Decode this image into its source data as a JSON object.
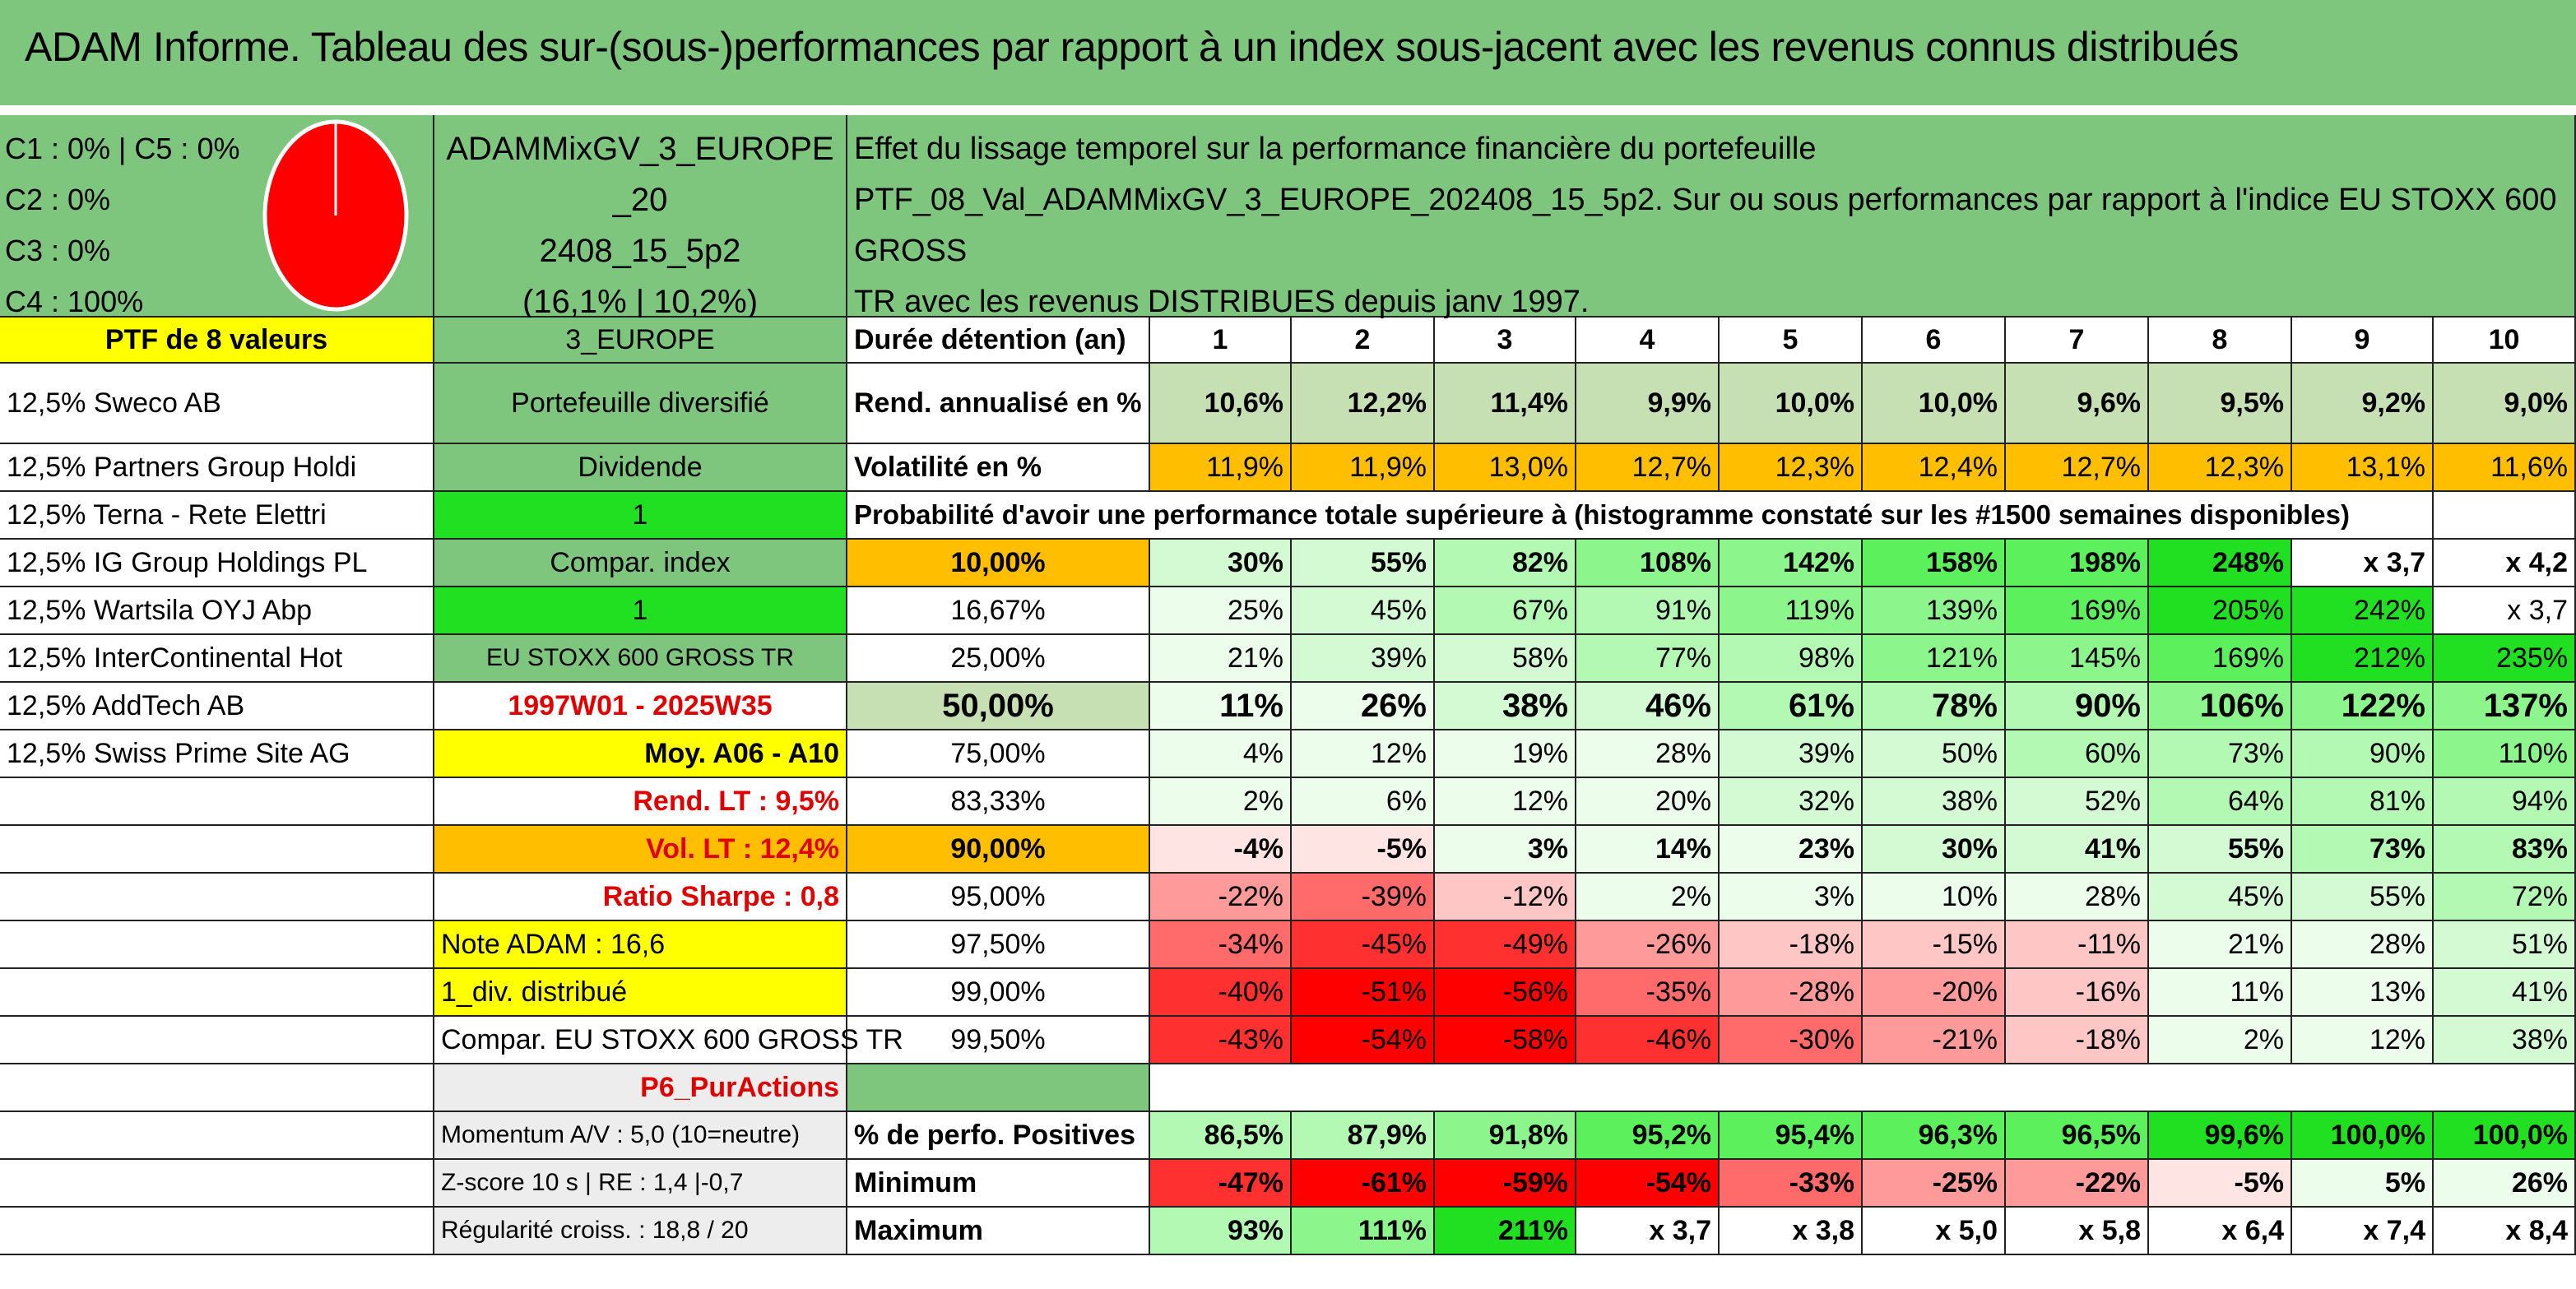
{
  "title": "ADAM Informe. Tableau des sur-(sous-)performances par rapport à un index sous-jacent avec les revenus connus distribués",
  "composition": [
    "C1 : 0% | C5 : 0%",
    "C2 : 0%",
    "C3 : 0%",
    "C4 : 100%"
  ],
  "pie": {
    "fill": "#ff0000",
    "stroke": "#ffffff"
  },
  "portfolio_name_lines": [
    "ADAMMixGV_3_EUROPE_20",
    "2408_15_5p2",
    "(16,1% | 10,2%)"
  ],
  "description_lines": [
    "Effet du lissage temporel sur la performance financière du portefeuille",
    "PTF_08_Val_ADAMMixGV_3_EUROPE_202408_15_5p2. Sur ou sous performances par rapport à l'indice EU STOXX 600 GROSS",
    "TR avec les revenus DISTRIBUES depuis janv 1997."
  ],
  "left_col": [
    "PTF de 8 valeurs",
    "12,5% Sweco AB",
    "12,5% Partners Group Holdi",
    "12,5% Terna - Rete Elettri",
    "12,5% IG Group Holdings PL",
    "12,5% Wartsila OYJ Abp",
    "12,5% InterContinental Hot",
    "12,5% AddTech AB",
    "12,5% Swiss Prime Site AG",
    "",
    "",
    "",
    "",
    "",
    "",
    "",
    "",
    "",
    ""
  ],
  "mid_col": [
    "3_EUROPE",
    "Portefeuille diversifié",
    "Dividende",
    "1",
    "Compar. index",
    "1",
    "EU STOXX 600 GROSS TR",
    "1997W01 - 2025W35",
    "Moy. A06 - A10",
    "Rend. LT : 9,5%",
    "Vol. LT : 12,4%",
    "Ratio Sharpe : 0,8",
    "Note ADAM : 16,6",
    "1_div. distribué",
    "Compar. EU STOXX 600 GROSS TR",
    "P6_PurActions",
    "Momentum A/V : 5,0 (10=neutre)",
    "Z-score 10 s | RE : 1,4 |-0,7",
    "Régularité croiss. : 18,8 / 20"
  ],
  "durations_header": "Durée détention (an)",
  "years": [
    "1",
    "2",
    "3",
    "4",
    "5",
    "6",
    "7",
    "8",
    "9",
    "10"
  ],
  "rend_label": "Rend. annualisé en %",
  "rend": [
    "10,6%",
    "12,2%",
    "11,4%",
    "9,9%",
    "10,0%",
    "10,0%",
    "9,6%",
    "9,5%",
    "9,2%",
    "9,0%"
  ],
  "vol_label": "Volatilité en %",
  "vol": [
    "11,9%",
    "11,9%",
    "13,0%",
    "12,7%",
    "12,3%",
    "12,4%",
    "12,7%",
    "12,3%",
    "13,1%",
    "11,6%"
  ],
  "prob_title": "Probabilité d'avoir une performance totale supérieure à (histogramme constaté sur les #1500 semaines disponibles)",
  "prob_rows": [
    {
      "p": "10,00%",
      "v": [
        "30%",
        "55%",
        "82%",
        "108%",
        "142%",
        "158%",
        "198%",
        "248%",
        "x 3,7",
        "x 4,2"
      ]
    },
    {
      "p": "16,67%",
      "v": [
        "25%",
        "45%",
        "67%",
        "91%",
        "119%",
        "139%",
        "169%",
        "205%",
        "242%",
        "x 3,7"
      ]
    },
    {
      "p": "25,00%",
      "v": [
        "21%",
        "39%",
        "58%",
        "77%",
        "98%",
        "121%",
        "145%",
        "169%",
        "212%",
        "235%"
      ]
    },
    {
      "p": "50,00%",
      "v": [
        "11%",
        "26%",
        "38%",
        "46%",
        "61%",
        "78%",
        "90%",
        "106%",
        "122%",
        "137%"
      ]
    },
    {
      "p": "75,00%",
      "v": [
        "4%",
        "12%",
        "19%",
        "28%",
        "39%",
        "50%",
        "60%",
        "73%",
        "90%",
        "110%"
      ]
    },
    {
      "p": "83,33%",
      "v": [
        "2%",
        "6%",
        "12%",
        "20%",
        "32%",
        "38%",
        "52%",
        "64%",
        "81%",
        "94%"
      ]
    },
    {
      "p": "90,00%",
      "v": [
        "-4%",
        "-5%",
        "3%",
        "14%",
        "23%",
        "30%",
        "41%",
        "55%",
        "73%",
        "83%"
      ]
    },
    {
      "p": "95,00%",
      "v": [
        "-22%",
        "-39%",
        "-12%",
        "2%",
        "3%",
        "10%",
        "28%",
        "45%",
        "55%",
        "72%"
      ]
    },
    {
      "p": "97,50%",
      "v": [
        "-34%",
        "-45%",
        "-49%",
        "-26%",
        "-18%",
        "-15%",
        "-11%",
        "21%",
        "28%",
        "51%"
      ]
    },
    {
      "p": "99,00%",
      "v": [
        "-40%",
        "-51%",
        "-56%",
        "-35%",
        "-28%",
        "-20%",
        "-16%",
        "11%",
        "13%",
        "41%"
      ]
    },
    {
      "p": "99,50%",
      "v": [
        "-43%",
        "-54%",
        "-58%",
        "-46%",
        "-30%",
        "-21%",
        "-18%",
        "2%",
        "12%",
        "38%"
      ]
    }
  ],
  "pos_label": "% de perfo. Positives",
  "pos": [
    "86,5%",
    "87,9%",
    "91,8%",
    "95,2%",
    "95,4%",
    "96,3%",
    "96,5%",
    "99,6%",
    "100,0%",
    "100,0%"
  ],
  "min_label": "Minimum",
  "min": [
    "-47%",
    "-61%",
    "-59%",
    "-54%",
    "-33%",
    "-25%",
    "-22%",
    "-5%",
    "5%",
    "26%"
  ],
  "max_label": "Maximum",
  "max": [
    "93%",
    "111%",
    "211%",
    "x 3,7",
    "x 3,8",
    "x 5,0",
    "x 5,8",
    "x 6,4",
    "x 7,4",
    "x 8,4"
  ],
  "colors": {
    "title_green": "#7ec57e",
    "yellow": "#ffff00",
    "orange": "#ffbf00",
    "bright_green": "#21e021",
    "red": "#ff0000"
  }
}
